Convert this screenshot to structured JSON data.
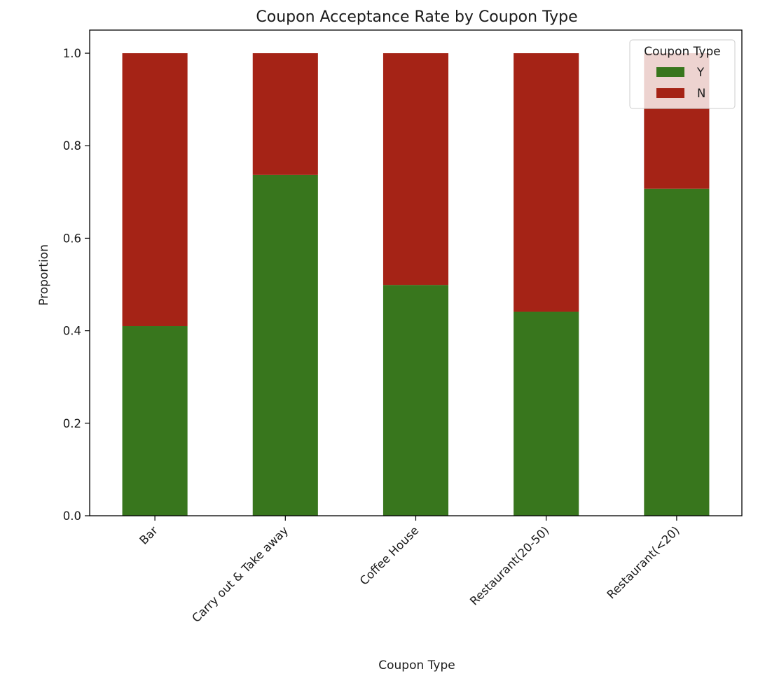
{
  "chart_data": {
    "type": "bar",
    "stacked": true,
    "title": "Coupon Acceptance Rate by Coupon Type",
    "xlabel": "Coupon Type",
    "ylabel": "Proportion",
    "ylim": [
      0,
      1.05
    ],
    "yticks": [
      "0.0",
      "0.2",
      "0.4",
      "0.6",
      "0.8",
      "1.0"
    ],
    "categories": [
      "Bar",
      "Carry out & Take away",
      "Coffee House",
      "Restaurant(20-50)",
      "Restaurant(<20)"
    ],
    "series": [
      {
        "name": "Y",
        "color": "#38761d",
        "values": [
          0.41,
          0.737,
          0.499,
          0.441,
          0.707
        ]
      },
      {
        "name": "N",
        "color": "#a52316",
        "values": [
          0.59,
          0.263,
          0.501,
          0.559,
          0.293
        ]
      }
    ],
    "legend": {
      "title": "Coupon Type",
      "position": "top-right"
    },
    "grid": false
  }
}
